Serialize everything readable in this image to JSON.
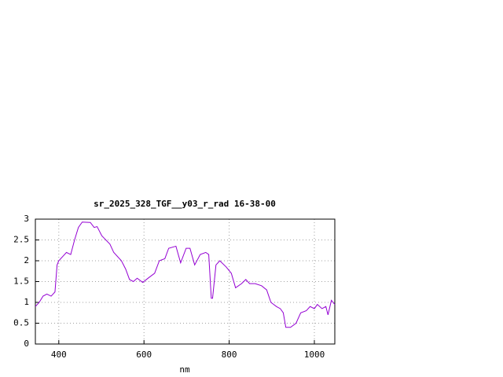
{
  "chart_data": {
    "type": "line",
    "title": "sr_2025_328_TGF__y03_r_rad 16-38-00",
    "x_label": "nm",
    "xlim": [
      345,
      1048
    ],
    "xticks": [
      400,
      600,
      800,
      1000
    ],
    "ylim": [
      0,
      3
    ],
    "yticks": [
      0,
      0.5,
      1,
      1.5,
      2,
      2.5,
      3
    ],
    "grid": true,
    "x": [
      345,
      354,
      363,
      372,
      382,
      391,
      396,
      400,
      409,
      418,
      428,
      437,
      446,
      455,
      474,
      483,
      490,
      501,
      520,
      529,
      547,
      557,
      566,
      575,
      584,
      597,
      612,
      625,
      636,
      649,
      658,
      675,
      686,
      699,
      708,
      719,
      732,
      745,
      752,
      758,
      761,
      769,
      778,
      793,
      805,
      815,
      829,
      839,
      848,
      861,
      876,
      888,
      898,
      911,
      920,
      927,
      933,
      944,
      957,
      968,
      981,
      990,
      1000,
      1007,
      1018,
      1027,
      1032,
      1040,
      1048
    ],
    "series": [
      {
        "color": "#9400d3",
        "values": [
          0.9,
          1.0,
          1.15,
          1.2,
          1.15,
          1.25,
          1.9,
          2.0,
          2.1,
          2.2,
          2.15,
          2.5,
          2.8,
          2.93,
          2.92,
          2.8,
          2.82,
          2.6,
          2.4,
          2.2,
          2.0,
          1.8,
          1.55,
          1.5,
          1.58,
          1.48,
          1.6,
          1.7,
          2.0,
          2.05,
          2.3,
          2.35,
          1.95,
          2.3,
          2.3,
          1.9,
          2.15,
          2.2,
          2.15,
          1.1,
          1.1,
          1.9,
          2.0,
          1.85,
          1.7,
          1.35,
          1.45,
          1.55,
          1.45,
          1.45,
          1.4,
          1.3,
          1.0,
          0.9,
          0.85,
          0.75,
          0.4,
          0.4,
          0.5,
          0.75,
          0.8,
          0.9,
          0.85,
          0.95,
          0.85,
          0.9,
          0.7,
          1.05,
          0.95
        ]
      }
    ]
  }
}
